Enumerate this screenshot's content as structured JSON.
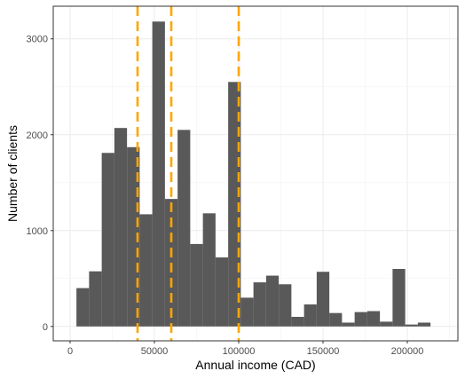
{
  "chart_data": {
    "type": "bar",
    "xlabel": "Annual income (CAD)",
    "ylabel": "Number of clients",
    "xlim": [
      -10000,
      230000
    ],
    "ylim": [
      -150,
      3340
    ],
    "grid": true,
    "bin_width": 7500,
    "bars": [
      {
        "x": 7500,
        "value": 400
      },
      {
        "x": 15000,
        "value": 575
      },
      {
        "x": 22500,
        "value": 1810
      },
      {
        "x": 30000,
        "value": 2070
      },
      {
        "x": 37500,
        "value": 1870
      },
      {
        "x": 45000,
        "value": 1170
      },
      {
        "x": 52500,
        "value": 3180
      },
      {
        "x": 60000,
        "value": 1330
      },
      {
        "x": 67500,
        "value": 2050
      },
      {
        "x": 75000,
        "value": 860
      },
      {
        "x": 82500,
        "value": 1180
      },
      {
        "x": 90000,
        "value": 720
      },
      {
        "x": 97500,
        "value": 2550
      },
      {
        "x": 105000,
        "value": 300
      },
      {
        "x": 112500,
        "value": 460
      },
      {
        "x": 120000,
        "value": 530
      },
      {
        "x": 127500,
        "value": 440
      },
      {
        "x": 135000,
        "value": 100
      },
      {
        "x": 142500,
        "value": 230
      },
      {
        "x": 150000,
        "value": 570
      },
      {
        "x": 157500,
        "value": 140
      },
      {
        "x": 165000,
        "value": 40
      },
      {
        "x": 172500,
        "value": 150
      },
      {
        "x": 180000,
        "value": 160
      },
      {
        "x": 187500,
        "value": 50
      },
      {
        "x": 195000,
        "value": 600
      },
      {
        "x": 202500,
        "value": 20
      },
      {
        "x": 210000,
        "value": 40
      }
    ],
    "reference_lines": [
      40000,
      60000,
      100000
    ],
    "reference_line_color": "#FFA500",
    "bar_color": "#595959",
    "x_ticks": [
      {
        "value": 0,
        "label": "0"
      },
      {
        "value": 50000,
        "label": "50000"
      },
      {
        "value": 100000,
        "label": "100000"
      },
      {
        "value": 150000,
        "label": "150000"
      },
      {
        "value": 200000,
        "label": "200000"
      }
    ],
    "y_ticks": [
      {
        "value": 0,
        "label": "0"
      },
      {
        "value": 1000,
        "label": "1000"
      },
      {
        "value": 2000,
        "label": "2000"
      },
      {
        "value": 3000,
        "label": "3000"
      }
    ]
  }
}
